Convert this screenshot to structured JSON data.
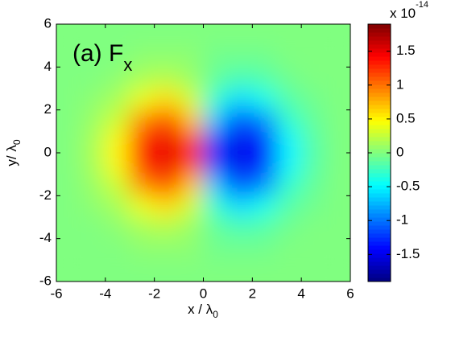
{
  "chart_data": {
    "type": "heatmap",
    "title": "(a) F",
    "title_sub": "x",
    "xlabel": "x / λ",
    "xlabel_sub": "0",
    "ylabel": "y/ λ",
    "ylabel_sub": "0",
    "colorbar_multiplier": "x 10",
    "colorbar_exponent": "-14",
    "xlim": [
      -6,
      6
    ],
    "ylim": [
      -6,
      6
    ],
    "xticks": [
      -6,
      -4,
      -2,
      0,
      2,
      4,
      6
    ],
    "yticks": [
      -6,
      -4,
      -2,
      0,
      2,
      4,
      6
    ],
    "x": [
      -5.5,
      -4.5,
      -3.5,
      -2.5,
      -1.5,
      -0.5,
      0.5,
      1.5,
      2.5,
      3.5,
      4.5,
      5.5
    ],
    "y": [
      5.5,
      4.5,
      3.5,
      2.5,
      1.5,
      0.5,
      -0.5,
      -1.5,
      -2.5,
      -3.5,
      -4.5,
      -5.5
    ],
    "clim": [
      -1.9,
      1.9
    ],
    "cticks": [
      -1.5,
      -1,
      -0.5,
      0,
      0.5,
      1,
      1.5
    ],
    "z": [
      [
        0,
        0,
        0,
        0,
        0,
        0,
        0,
        0,
        0,
        0,
        0,
        0
      ],
      [
        0,
        0,
        0,
        0.05,
        0.05,
        0.05,
        -0.05,
        -0.05,
        -0.05,
        0,
        0,
        0
      ],
      [
        0,
        0,
        0.05,
        0.15,
        0.2,
        0.1,
        -0.1,
        -0.2,
        -0.15,
        -0.05,
        0,
        0
      ],
      [
        0,
        0.05,
        0.15,
        0.4,
        0.6,
        0.3,
        -0.3,
        -0.6,
        -0.4,
        -0.15,
        -0.05,
        0
      ],
      [
        0,
        0.1,
        0.3,
        0.9,
        1.2,
        0.7,
        -0.7,
        -1.2,
        -0.9,
        -0.3,
        -0.1,
        0
      ],
      [
        0,
        0.15,
        0.5,
        1.3,
        1.5,
        1.2,
        -1.2,
        -1.5,
        -1.3,
        -0.5,
        -0.15,
        0
      ],
      [
        0,
        0.15,
        0.5,
        1.3,
        1.5,
        1.2,
        -1.2,
        -1.5,
        -1.3,
        -0.5,
        -0.15,
        0
      ],
      [
        0,
        0.1,
        0.3,
        0.9,
        1.2,
        0.7,
        -0.7,
        -1.2,
        -0.9,
        -0.3,
        -0.1,
        0
      ],
      [
        0,
        0.05,
        0.15,
        0.4,
        0.6,
        0.3,
        -0.3,
        -0.6,
        -0.4,
        -0.15,
        -0.05,
        0
      ],
      [
        0,
        0,
        0.05,
        0.15,
        0.2,
        0.1,
        -0.1,
        -0.2,
        -0.15,
        -0.05,
        0,
        0
      ],
      [
        0,
        0,
        0,
        0.05,
        0.05,
        0.05,
        -0.05,
        -0.05,
        -0.05,
        0,
        0,
        0
      ],
      [
        0,
        0,
        0,
        0,
        0,
        0,
        0,
        0,
        0,
        0,
        0,
        0
      ]
    ]
  }
}
